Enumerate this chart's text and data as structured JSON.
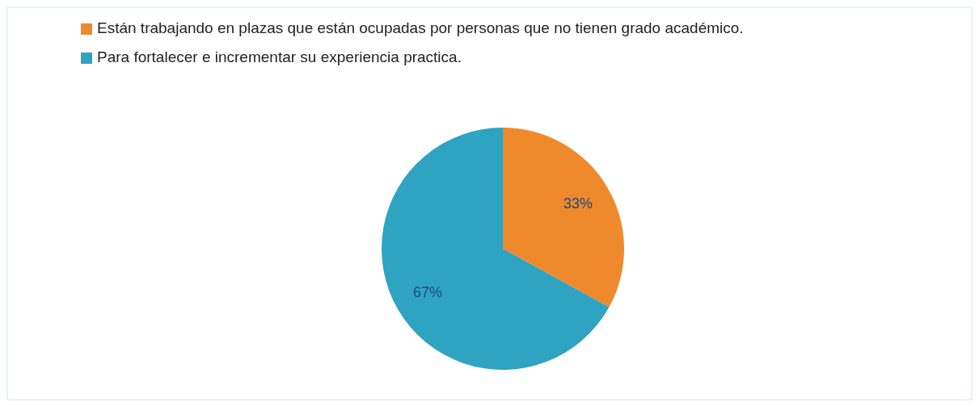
{
  "chart_data": {
    "type": "pie",
    "categories": [
      "Están trabajando en plazas que están ocupadas por personas que no tienen grado académico.",
      "Para fortalecer e incrementar su experiencia practica."
    ],
    "values": [
      33,
      67
    ],
    "colors": [
      "#ef8a2c",
      "#2fa3c2"
    ],
    "value_labels": [
      "33%",
      "67%"
    ],
    "legend": "top"
  }
}
